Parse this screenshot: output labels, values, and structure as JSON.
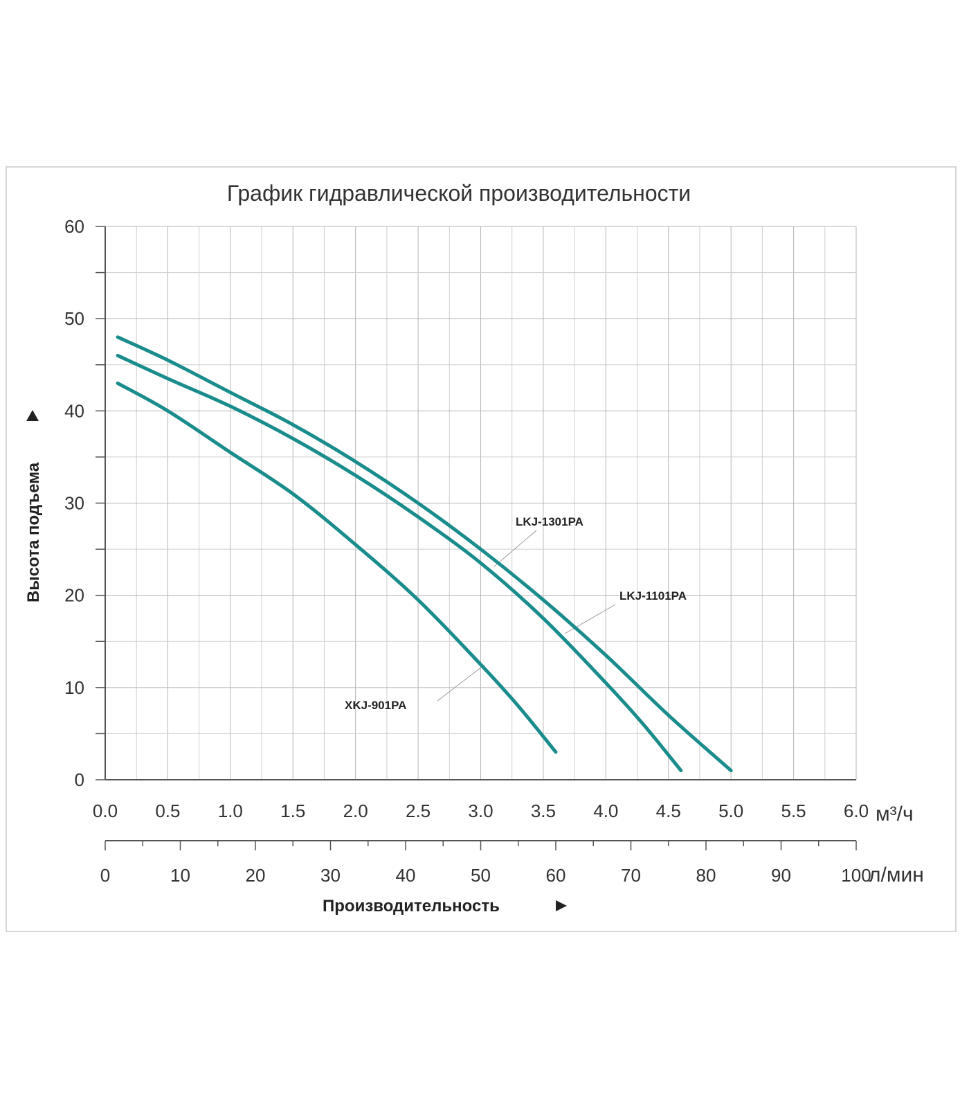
{
  "chart_data": {
    "type": "line",
    "title": "График гидравлической производительности",
    "ylabel": "Высота подъема",
    "xlabel": "Производительность",
    "ylim": [
      0,
      60
    ],
    "y_ticks": [
      "0",
      "10",
      "20",
      "30",
      "40",
      "50",
      "60"
    ],
    "xlim": [
      0,
      6
    ],
    "x_ticks": [
      "0.0",
      "0.5",
      "1.0",
      "1.5",
      "2.0",
      "2.5",
      "3.0",
      "3.5",
      "4.0",
      "4.5",
      "5.0",
      "5.5",
      "6.0"
    ],
    "x_unit": "м³/ч",
    "x2lim": [
      0,
      100
    ],
    "x2_ticks": [
      "0",
      "10",
      "20",
      "30",
      "40",
      "50",
      "60",
      "70",
      "80",
      "90",
      "100"
    ],
    "x2_unit": "л/мин",
    "grid": true,
    "line_color": "#1a8c8c",
    "series": [
      {
        "name": "LKJ-1301PA",
        "x": [
          0.1,
          0.5,
          1.0,
          1.5,
          2.0,
          2.5,
          3.0,
          3.5,
          4.0,
          4.5,
          5.0
        ],
        "y": [
          48,
          45.5,
          42,
          38.5,
          34.5,
          30,
          25,
          19.5,
          13.5,
          7,
          1
        ]
      },
      {
        "name": "LKJ-1101PA",
        "x": [
          0.1,
          0.5,
          1.0,
          1.5,
          2.0,
          2.5,
          3.0,
          3.5,
          4.0,
          4.3,
          4.6
        ],
        "y": [
          46,
          43.5,
          40.5,
          37,
          33,
          28.5,
          23.5,
          17.5,
          10.5,
          6,
          1
        ]
      },
      {
        "name": "XKJ-901PA",
        "x": [
          0.1,
          0.5,
          1.0,
          1.5,
          2.0,
          2.5,
          3.0,
          3.3,
          3.6
        ],
        "y": [
          43,
          40,
          35.5,
          31,
          25.5,
          19.5,
          12.5,
          8,
          3
        ]
      }
    ]
  }
}
